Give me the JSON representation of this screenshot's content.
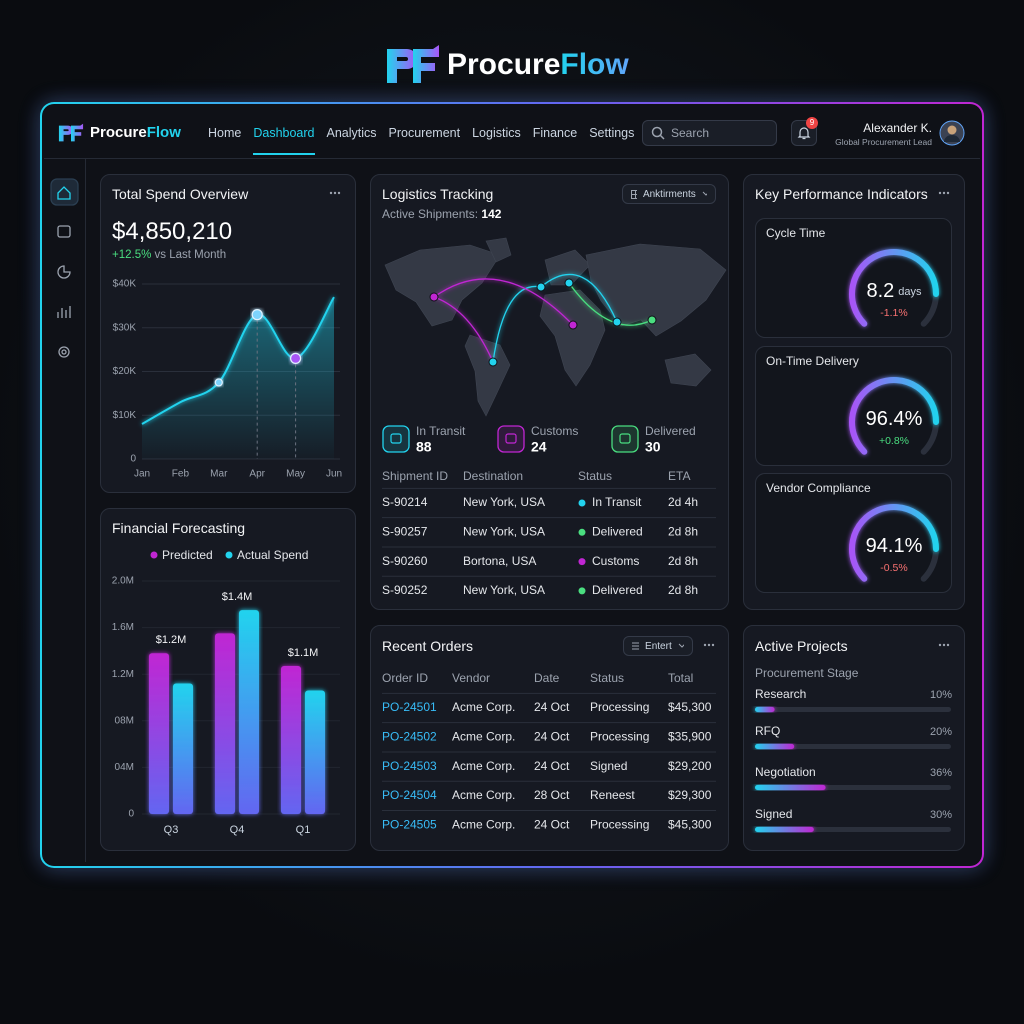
{
  "brand": {
    "name": "Procure",
    "accent": "Flow"
  },
  "nav": {
    "items": [
      "Home",
      "Dashboard",
      "Analytics",
      "Procurement",
      "Logistics",
      "Finance",
      "Settings"
    ],
    "active": 1,
    "search": "Search",
    "notifications": 9,
    "user": {
      "name": "Alexander K.",
      "role": "Global Procurement Lead"
    }
  },
  "spend": {
    "title": "Total Spend Overview",
    "total": "$4,850,210",
    "change": "+12.5%",
    "change_note": "vs Last Month",
    "chart": {
      "type": "area",
      "categories": [
        "Jan",
        "Feb",
        "Mar",
        "Apr",
        "May",
        "Jun"
      ],
      "values": [
        8000,
        13000,
        17500,
        33000,
        23000,
        37000
      ],
      "color": "#22d3ee",
      "markers": [
        2,
        3,
        4
      ],
      "ylim": [
        0,
        40000
      ],
      "yticks": [
        0,
        {
          "value": 10000,
          "label": "$10K"
        },
        {
          "value": 20000,
          "label": "$20K"
        },
        {
          "value": 30000,
          "label": "$30K"
        },
        {
          "value": 40000,
          "label": "$40K"
        }
      ]
    }
  },
  "forecast": {
    "title": "Financial Forecasting",
    "chart": {
      "type": "bar",
      "categories": [
        "Q3",
        "Q4",
        "Q1"
      ],
      "series": [
        {
          "name": "Predicted",
          "color": "#c026d3",
          "values": [
            1380000,
            1550000,
            1270000
          ]
        },
        {
          "name": "Actual Spend",
          "color": "#22d3ee",
          "values": [
            1120000,
            1750000,
            1060000
          ]
        }
      ],
      "group_labels": [
        "$1.2M",
        "$1.4M",
        "$1.1M"
      ],
      "ylim": [
        0,
        2000000
      ],
      "yticks": [
        0,
        {
          "value": 400000,
          "label": "04M"
        },
        {
          "value": 800000,
          "label": "08M"
        },
        {
          "value": 1200000,
          "label": "1.2M"
        },
        {
          "value": 1600000,
          "label": "1.6M"
        },
        {
          "value": 2000000,
          "label": "2.0M"
        }
      ]
    }
  },
  "logistics": {
    "title": "Logistics Tracking",
    "active_label": "Active Shipments:",
    "active_count": 142,
    "filter": "Anktirments",
    "stats": [
      {
        "label": "In Transit",
        "value": 88,
        "color": "#22d3ee"
      },
      {
        "label": "Customs",
        "value": 24,
        "color": "#c026d3"
      },
      {
        "label": "Delivered",
        "value": 30,
        "color": "#4ade80"
      }
    ],
    "table": {
      "headers": [
        "Shipment ID",
        "Destination",
        "Status",
        "ETA"
      ],
      "rows": [
        [
          "S-90214",
          "New York, USA",
          "In Transit",
          "2d 4h"
        ],
        [
          "S-90257",
          "New York, USA",
          "Delivered",
          "2d 8h"
        ],
        [
          "S-90260",
          "Bortona, USA",
          "Customs",
          "2d 8h"
        ],
        [
          "S-90252",
          "New York, USA",
          "Delivered",
          "2d 8h"
        ]
      ]
    }
  },
  "kpi": {
    "title": "Key Performance Indicators",
    "items": [
      {
        "label": "Cycle Time",
        "value": "8.2",
        "unit": "days",
        "change": "-1.1%"
      },
      {
        "label": "On-Time Delivery",
        "value": "96.4%",
        "change": "+0.8%"
      },
      {
        "label": "Vendor Compliance",
        "value": "94.1%",
        "change": "-0.5%"
      }
    ]
  },
  "orders": {
    "title": "Recent Orders",
    "filter": "Entert",
    "table": {
      "headers": [
        "Order ID",
        "Vendor",
        "Date",
        "Status",
        "Total"
      ],
      "rows": [
        [
          "PO-24501",
          "Acme Corp.",
          "24 Oct",
          "Processing",
          "$45,300"
        ],
        [
          "PO-24502",
          "Acme Corp.",
          "24 Oct",
          "Processing",
          "$35,900"
        ],
        [
          "PO-24503",
          "Acme Corp.",
          "24 Oct",
          "Signed",
          "$29,200"
        ],
        [
          "PO-24504",
          "Acme Corp.",
          "28 Oct",
          "Reneest",
          "$29,300"
        ],
        [
          "PO-24505",
          "Acme Corp.",
          "24 Oct",
          "Processing",
          "$45,300"
        ]
      ]
    }
  },
  "projects": {
    "title": "Active Projects",
    "subtitle": "Procurement Stage",
    "stages": {
      "names": [
        "Research",
        "RFQ",
        "Negotiation",
        "Signed"
      ],
      "values": [
        10,
        20,
        36,
        30
      ],
      "value_labels": [
        "10%",
        "20%",
        "36%",
        "30%"
      ],
      "xlim": [
        0,
        100
      ]
    }
  }
}
